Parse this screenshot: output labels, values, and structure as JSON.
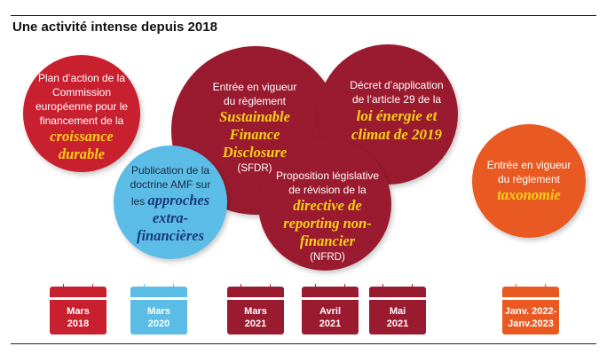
{
  "title": "Une activité intense depuis 2018",
  "bubbles": {
    "plan": {
      "text": "Plan d’action de la Commission européenne pour le financement de la",
      "em": "croissance durable"
    },
    "amf": {
      "text": "Publication de la doctrine AMF sur les",
      "em": "approches extra-financières"
    },
    "sfdr": {
      "text": "Entrée en vigueur du règlement",
      "em": "Sustainable Finance Disclosure",
      "suffix": "(SFDR)"
    },
    "decret": {
      "text": "Décret d’application de l’article 29 de la",
      "em": "loi énergie et climat de 2019"
    },
    "nfrd": {
      "text": "Proposition législative de révision de la",
      "em": "directive de reporting non-financier",
      "suffix": "(NFRD)"
    },
    "taxo": {
      "text": "Entrée en vigueur du règlement",
      "em": "taxonomie"
    }
  },
  "calendars": [
    {
      "month": "Mars",
      "year": "2018",
      "color": "#c8202f"
    },
    {
      "month": "Mars",
      "year": "2020",
      "color": "#5bbde6"
    },
    {
      "month": "Mars",
      "year": "2021",
      "color": "#9a1b2f"
    },
    {
      "month": "Avril",
      "year": "2021",
      "color": "#9a1b2f"
    },
    {
      "month": "Mai",
      "year": "2021",
      "color": "#9a1b2f"
    },
    {
      "month": "Janv. 2022-",
      "year": "Janv.2023",
      "color": "#e85a22"
    }
  ]
}
